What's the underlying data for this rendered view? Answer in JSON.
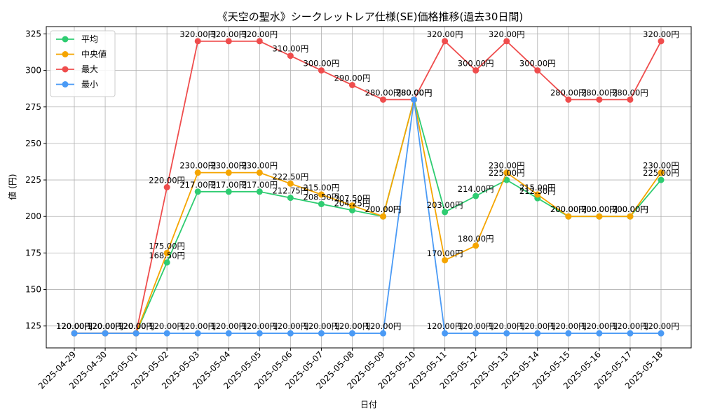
{
  "chart_data": {
    "type": "line",
    "title": "《天空の聖水》シークレットレア仕様(SE)価格推移(過去30日間)",
    "xlabel": "日付",
    "ylabel": "値 (円)",
    "ylim": [
      110,
      330
    ],
    "yticks": [
      125,
      150,
      175,
      200,
      225,
      250,
      275,
      300,
      325
    ],
    "grid": true,
    "legend_position": "top-left",
    "x": [
      "2025-04-29",
      "2025-04-30",
      "2025-05-01",
      "2025-05-02",
      "2025-05-03",
      "2025-05-04",
      "2025-05-05",
      "2025-05-06",
      "2025-05-07",
      "2025-05-08",
      "2025-05-09",
      "2025-05-10",
      "2025-05-11",
      "2025-05-12",
      "2025-05-13",
      "2025-05-14",
      "2025-05-15",
      "2025-05-16",
      "2025-05-17",
      "2025-05-18"
    ],
    "value_suffix": "円",
    "series": [
      {
        "name": "平均",
        "color": "#2ecc71",
        "values": [
          120,
          120,
          120,
          168.5,
          217,
          217,
          217,
          212.75,
          208.5,
          204.25,
          200,
          280,
          203,
          214,
          225,
          212.5,
          200,
          200,
          200,
          225
        ]
      },
      {
        "name": "中央値",
        "color": "#f5a500",
        "values": [
          120,
          120,
          120,
          175,
          230,
          230,
          230,
          222.5,
          215,
          207.5,
          200,
          280,
          170,
          180,
          230,
          215,
          200,
          200,
          200,
          230
        ]
      },
      {
        "name": "最大",
        "color": "#ef4d4d",
        "values": [
          120,
          120,
          120,
          220,
          320,
          320,
          320,
          310,
          300,
          290,
          280,
          280,
          320,
          300,
          320,
          300,
          280,
          280,
          280,
          320
        ]
      },
      {
        "name": "最小",
        "color": "#4a9af5",
        "values": [
          120,
          120,
          120,
          120,
          120,
          120,
          120,
          120,
          120,
          120,
          120,
          280,
          120,
          120,
          120,
          120,
          120,
          120,
          120,
          120
        ]
      }
    ]
  }
}
